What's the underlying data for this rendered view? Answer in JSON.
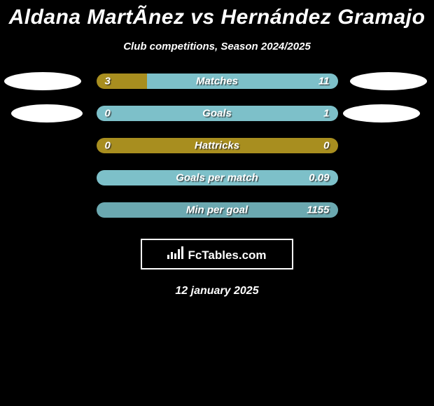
{
  "title": "Aldana MartÃ­nez vs Hernández Gramajo",
  "subtitle": "Club competitions, Season 2024/2025",
  "colors": {
    "left": "#a88e1f",
    "right": "#7dc0c9",
    "right_muted": "#6ba8b0"
  },
  "stats": [
    {
      "label": "Matches",
      "left_val": "3",
      "right_val": "11",
      "left_pct": 21,
      "right_pct": 79,
      "left_color": "#a88e1f",
      "right_color": "#7dc0c9"
    },
    {
      "label": "Goals",
      "left_val": "0",
      "right_val": "1",
      "left_pct": 0,
      "right_pct": 100,
      "left_color": "#a88e1f",
      "right_color": "#7dc0c9",
      "full_right": true
    },
    {
      "label": "Hattricks",
      "left_val": "0",
      "right_val": "0",
      "left_pct": 100,
      "right_pct": 0,
      "left_color": "#a88e1f",
      "right_color": "#7dc0c9",
      "full_left": true
    },
    {
      "label": "Goals per match",
      "left_val": "",
      "right_val": "0.09",
      "left_pct": 0,
      "right_pct": 100,
      "left_color": "#a88e1f",
      "right_color": "#7dc0c9",
      "full_right": true
    },
    {
      "label": "Min per goal",
      "left_val": "",
      "right_val": "1155",
      "left_pct": 0,
      "right_pct": 100,
      "left_color": "#a88e1f",
      "right_color": "#6ba8b0",
      "full_right": true
    }
  ],
  "branding": {
    "name": "FcTables.com"
  },
  "date": "12 january 2025"
}
